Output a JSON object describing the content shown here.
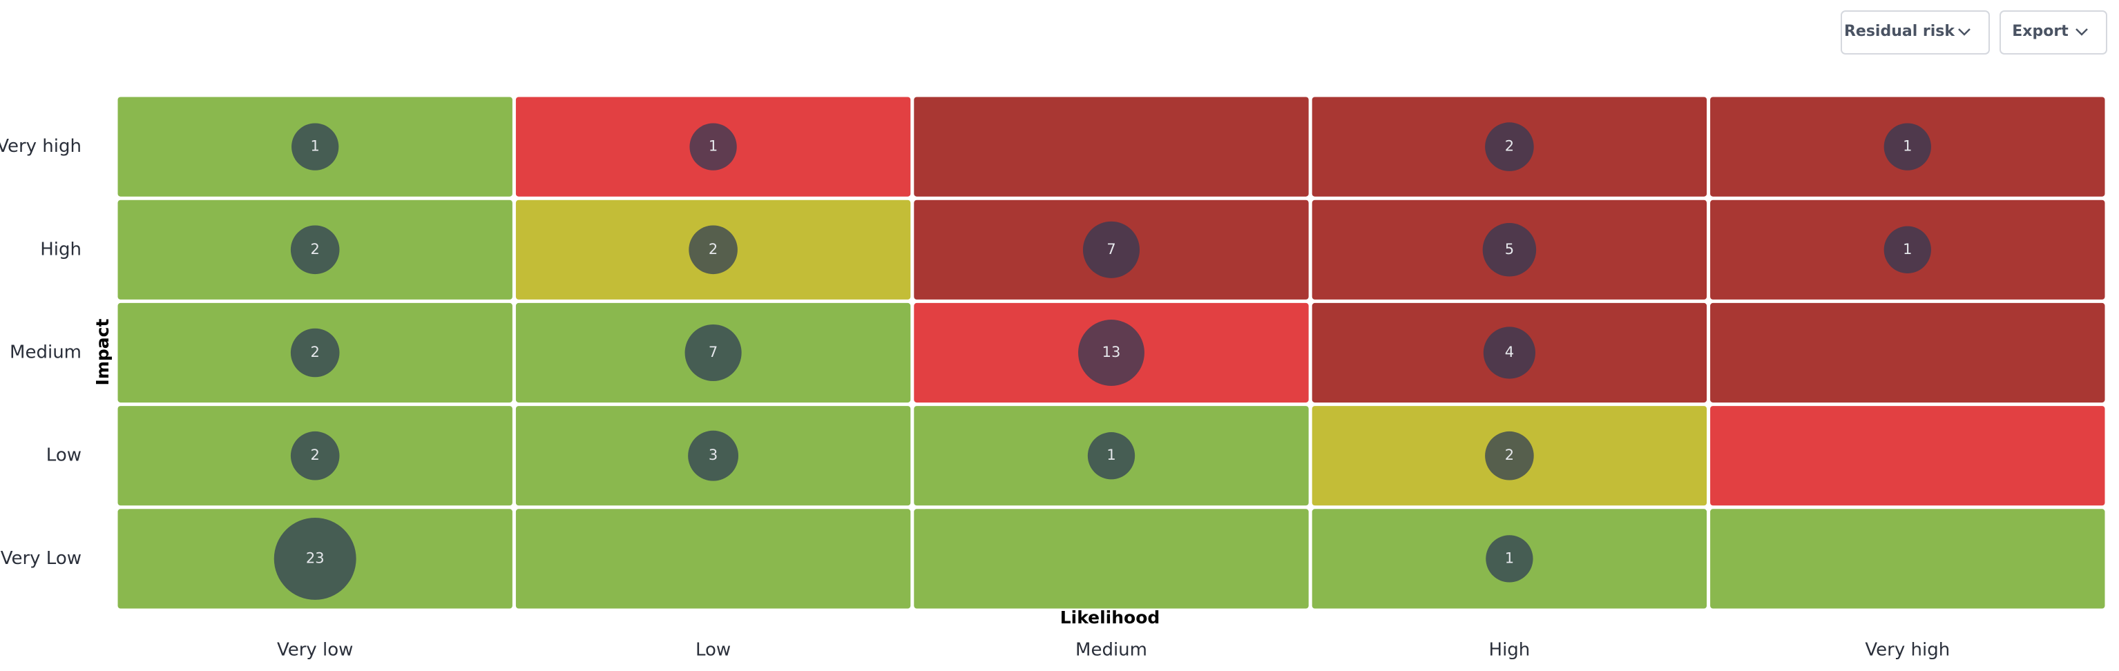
{
  "toolbar": {
    "buttons": [
      "Residual risk",
      "Export"
    ]
  },
  "chart_data": {
    "type": "matrix",
    "x_label": "Likelihood",
    "y_label": "Impact",
    "categories": [
      "Very low",
      "Low",
      "Medium",
      "High",
      "Very high"
    ],
    "rows": [
      "Very high",
      "High",
      "Medium",
      "Low",
      "Very Low"
    ],
    "values": [
      [
        1,
        1,
        null,
        2,
        1
      ],
      [
        2,
        2,
        7,
        5,
        1
      ],
      [
        2,
        7,
        13,
        4,
        null
      ],
      [
        2,
        3,
        1,
        2,
        null
      ],
      [
        23,
        null,
        null,
        1,
        null
      ]
    ],
    "cell_colors": [
      [
        "#8ab84e",
        "#e24042",
        "#a93733",
        "#a93733",
        "#a93733"
      ],
      [
        "#8ab84e",
        "#c3bd37",
        "#a93733",
        "#a93733",
        "#a93733"
      ],
      [
        "#8ab84e",
        "#8ab84e",
        "#e24042",
        "#a93733",
        "#a93733"
      ],
      [
        "#8ab84e",
        "#8ab84e",
        "#8ab84e",
        "#c3bd37",
        "#e24042"
      ],
      [
        "#8ab84e",
        "#8ab84e",
        "#8ab84e",
        "#8ab84e",
        "#8ab84e"
      ]
    ],
    "bubble_color": "#2c3a56"
  }
}
